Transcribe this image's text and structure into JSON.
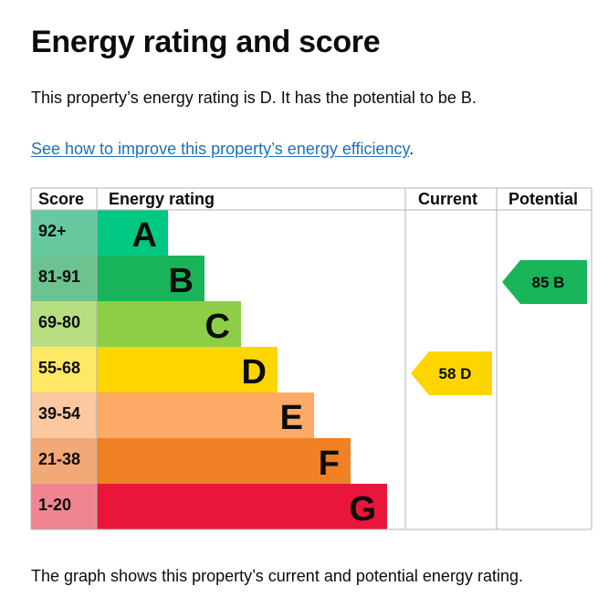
{
  "heading": "Energy rating and score",
  "summary": "This property’s energy rating is D. It has the potential to be B.",
  "improve_link": "See how to improve this property’s energy efficiency",
  "improve_link_suffix": ".",
  "footer": "The graph shows this property’s current and potential energy rating.",
  "chart_data": {
    "type": "bar",
    "columns": [
      "Score",
      "Energy rating",
      "Current",
      "Potential"
    ],
    "bands": [
      {
        "score": "92+",
        "rating": "A",
        "score_color": "#67c9a0",
        "bar_color": "#00c781",
        "width": 1
      },
      {
        "score": "81-91",
        "rating": "B",
        "score_color": "#6cc390",
        "bar_color": "#19b459",
        "width": 2
      },
      {
        "score": "69-80",
        "rating": "C",
        "score_color": "#b8de82",
        "bar_color": "#8dce46",
        "width": 3
      },
      {
        "score": "55-68",
        "rating": "D",
        "score_color": "#ffe866",
        "bar_color": "#ffd500",
        "width": 4
      },
      {
        "score": "39-54",
        "rating": "E",
        "score_color": "#fcc8a0",
        "bar_color": "#fcaa65",
        "width": 5
      },
      {
        "score": "21-38",
        "rating": "F",
        "score_color": "#f3a877",
        "bar_color": "#ef8023",
        "width": 6
      },
      {
        "score": "1-20",
        "rating": "G",
        "score_color": "#f08591",
        "bar_color": "#e9153b",
        "width": 7
      }
    ],
    "current": {
      "value": 58,
      "rating": "D",
      "label": "58  D",
      "color": "#ffd500"
    },
    "potential": {
      "value": 85,
      "rating": "B",
      "label": "85  B",
      "color": "#19b459"
    }
  }
}
